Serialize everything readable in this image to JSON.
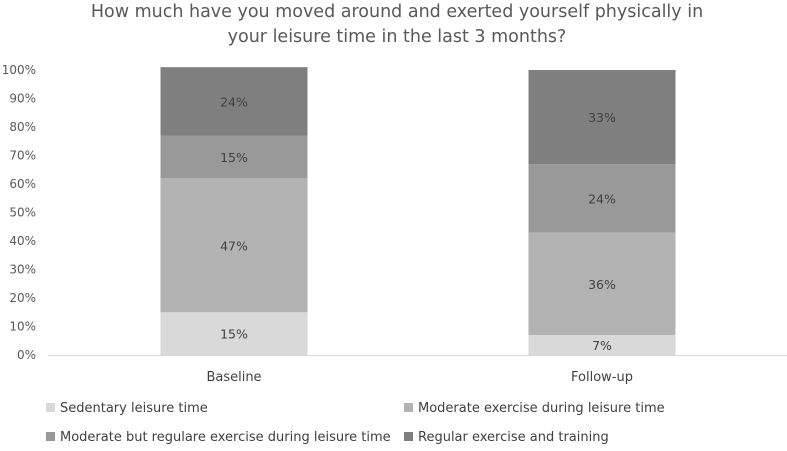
{
  "chart_data": {
    "type": "bar",
    "stacked": true,
    "title_lines": [
      "How much have you moved around and exerted yourself physically in",
      "your leisure time in the last 3 months?"
    ],
    "categories": [
      "Baseline",
      "Follow-up"
    ],
    "ylim": [
      0,
      100
    ],
    "yticks": [
      "0%",
      "10%",
      "20%",
      "30%",
      "40%",
      "50%",
      "60%",
      "70%",
      "80%",
      "90%",
      "100%"
    ],
    "series": [
      {
        "name": "Sedentary leisure time",
        "values": [
          15,
          7
        ],
        "labels": [
          "15%",
          "7%"
        ],
        "color": "#d9d9d9"
      },
      {
        "name": "Moderate exercise during leisure time",
        "values": [
          47,
          36
        ],
        "labels": [
          "47%",
          "36%"
        ],
        "color": "#b3b3b3"
      },
      {
        "name": "Moderate but regulare exercise during leisure time",
        "values": [
          15,
          24
        ],
        "labels": [
          "15%",
          "24%"
        ],
        "color": "#999999"
      },
      {
        "name": "Regular exercise and training",
        "values": [
          24,
          33
        ],
        "labels": [
          "24%",
          "33%"
        ],
        "color": "#7f7f7f"
      }
    ],
    "grid": false,
    "legend_position": "bottom"
  }
}
